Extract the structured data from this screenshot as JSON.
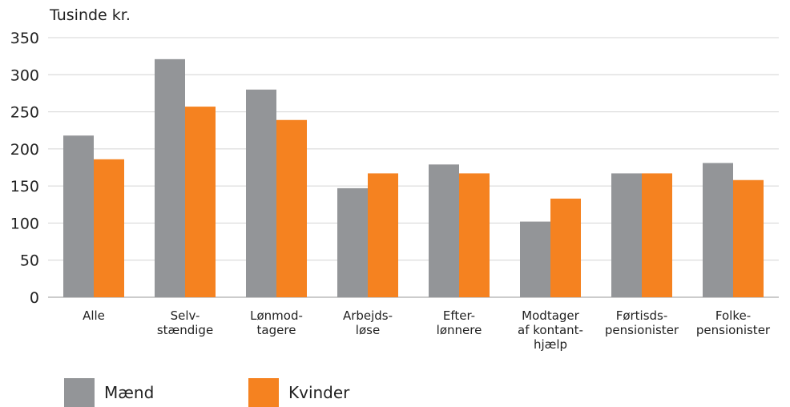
{
  "chart_data": {
    "type": "bar",
    "unit_label": "Tusinde kr.",
    "categories": [
      [
        "Alle"
      ],
      [
        "Selv-",
        "stændige"
      ],
      [
        "Lønmod-",
        "tagere"
      ],
      [
        "Arbejds-",
        "løse"
      ],
      [
        "Efter-",
        "lønnere"
      ],
      [
        "Modtager",
        "af kontant-",
        "hjælp"
      ],
      [
        "Førtisds-",
        "pensionister"
      ],
      [
        "Folke-",
        "pensionister"
      ]
    ],
    "series": [
      {
        "name": "Mænd",
        "color": "#939598",
        "values": [
          218,
          321,
          280,
          147,
          179,
          102,
          167,
          181
        ]
      },
      {
        "name": "Kvinder",
        "color": "#f58220",
        "values": [
          186,
          257,
          239,
          167,
          167,
          133,
          167,
          158
        ]
      }
    ],
    "ylim": [
      0,
      350
    ],
    "yticks": [
      0,
      50,
      100,
      150,
      200,
      250,
      300,
      350
    ],
    "grid": true,
    "legend_position": "bottom-left"
  }
}
